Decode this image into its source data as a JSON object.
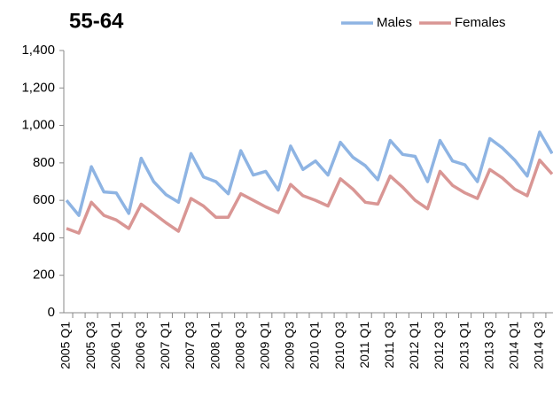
{
  "chart_data": {
    "type": "line",
    "title": "55-64",
    "categories": [
      "2005 Q1",
      null,
      "2005 Q3",
      null,
      "2006 Q1",
      null,
      "2006 Q3",
      null,
      "2007 Q1",
      null,
      "2007 Q3",
      null,
      "2008 Q1",
      null,
      "2008 Q3",
      null,
      "2009 Q1",
      null,
      "2009 Q3",
      null,
      "2010 Q1",
      null,
      "2010 Q3",
      null,
      "2011 Q1",
      null,
      "2011 Q3",
      null,
      "2012 Q1",
      null,
      "2012 Q3",
      null,
      "2013 Q1",
      null,
      "2013 Q3",
      null,
      "2014 Q1",
      null,
      "2014 Q3",
      null
    ],
    "series": [
      {
        "name": "Males",
        "color": "#8eb4e3",
        "values": [
          600,
          520,
          780,
          645,
          640,
          530,
          825,
          700,
          630,
          590,
          850,
          725,
          700,
          635,
          865,
          735,
          755,
          655,
          890,
          765,
          810,
          735,
          910,
          830,
          785,
          710,
          920,
          845,
          835,
          700,
          920,
          810,
          790,
          700,
          930,
          880,
          815,
          730,
          965,
          850
        ]
      },
      {
        "name": "Females",
        "color": "#d99694",
        "values": [
          450,
          425,
          590,
          520,
          495,
          450,
          580,
          530,
          480,
          435,
          610,
          570,
          510,
          510,
          635,
          600,
          565,
          535,
          685,
          625,
          600,
          570,
          715,
          660,
          590,
          580,
          730,
          670,
          600,
          555,
          755,
          680,
          640,
          610,
          765,
          720,
          660,
          625,
          815,
          740
        ]
      }
    ],
    "ylim": [
      0,
      1400
    ],
    "yticks": [
      0,
      200,
      400,
      600,
      800,
      {
        "value": 1000,
        "label": "1,000"
      },
      {
        "value": 1200,
        "label": "1,200"
      },
      {
        "value": 1400,
        "label": "1,400"
      }
    ],
    "legend": "top-right"
  }
}
